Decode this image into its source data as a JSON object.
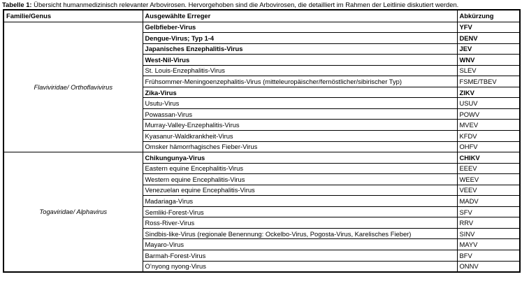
{
  "caption": {
    "label": "Tabelle 1:",
    "text": " Übersicht humanmedizinisch relevanter Arbovirosen. Hervorgehoben sind die Arbovirosen, die detailliert im Rahmen der Leitlinie diskutiert werden."
  },
  "table": {
    "headers": [
      "Familie/Genus",
      "Ausgewählte Erreger",
      "Abkürzung"
    ],
    "groups": [
      {
        "family": "Flaviviridae/ Orthoflavivirus",
        "rows": [
          {
            "erreger": "Gelbfieber-Virus",
            "abk": "YFV",
            "highlighted": true
          },
          {
            "erreger": "Dengue-Virus; Typ 1-4",
            "abk": "DENV",
            "highlighted": true
          },
          {
            "erreger": "Japanisches Enzephalitis-Virus",
            "abk": "JEV",
            "highlighted": true
          },
          {
            "erreger": "West-Nil-Virus",
            "abk": "WNV",
            "highlighted": true
          },
          {
            "erreger": "St. Louis-Enzephalitis-Virus",
            "abk": "SLEV",
            "highlighted": false
          },
          {
            "erreger": "Frühsommer-Meningoenzephalitis-Virus (mitteleuropäischer/fernöstlicher/sibirischer Typ)",
            "abk": "FSME/TBEV",
            "highlighted": false
          },
          {
            "erreger": "Zika-Virus",
            "abk": "ZIKV",
            "highlighted": true
          },
          {
            "erreger": "Usutu-Virus",
            "abk": "USUV",
            "highlighted": false
          },
          {
            "erreger": "Powassan-Virus",
            "abk": "POWV",
            "highlighted": false
          },
          {
            "erreger": "Murray-Valley-Enzephalitis-Virus",
            "abk": "MVEV",
            "highlighted": false
          },
          {
            "erreger": "Kyasanur-Waldkrankheit-Virus",
            "abk": "KFDV",
            "highlighted": false
          },
          {
            "erreger": "Omsker hämorrhagisches Fieber-Virus",
            "abk": "OHFV",
            "highlighted": false
          }
        ]
      },
      {
        "family": "Togaviridae/ Alphavirus",
        "rows": [
          {
            "erreger": "Chikungunya-Virus",
            "abk": "CHIKV",
            "highlighted": true
          },
          {
            "erreger": "Eastern equine Encephalitis-Virus",
            "abk": "EEEV",
            "highlighted": false
          },
          {
            "erreger": "Western equine Encephalitis-Virus",
            "abk": "WEEV",
            "highlighted": false
          },
          {
            "erreger": "Venezuelan equine Encephalitis-Virus",
            "abk": "VEEV",
            "highlighted": false
          },
          {
            "erreger": "Madariaga-Virus",
            "abk": "MADV",
            "highlighted": false
          },
          {
            "erreger": "Semliki-Forest-Virus",
            "abk": "SFV",
            "highlighted": false
          },
          {
            "erreger": "Ross-River-Virus",
            "abk": "RRV",
            "highlighted": false
          },
          {
            "erreger": "Sindbis-like-Virus (regionale Benennung: Ockelbo-Virus, Pogosta-Virus, Karelisches Fieber)",
            "abk": "SINV",
            "highlighted": false
          },
          {
            "erreger": "Mayaro-Virus",
            "abk": "MAYV",
            "highlighted": false
          },
          {
            "erreger": "Barmah-Forest-Virus",
            "abk": "BFV",
            "highlighted": false
          },
          {
            "erreger": "O’nyong nyong-Virus",
            "abk": "ONNV",
            "highlighted": false
          }
        ]
      }
    ]
  }
}
